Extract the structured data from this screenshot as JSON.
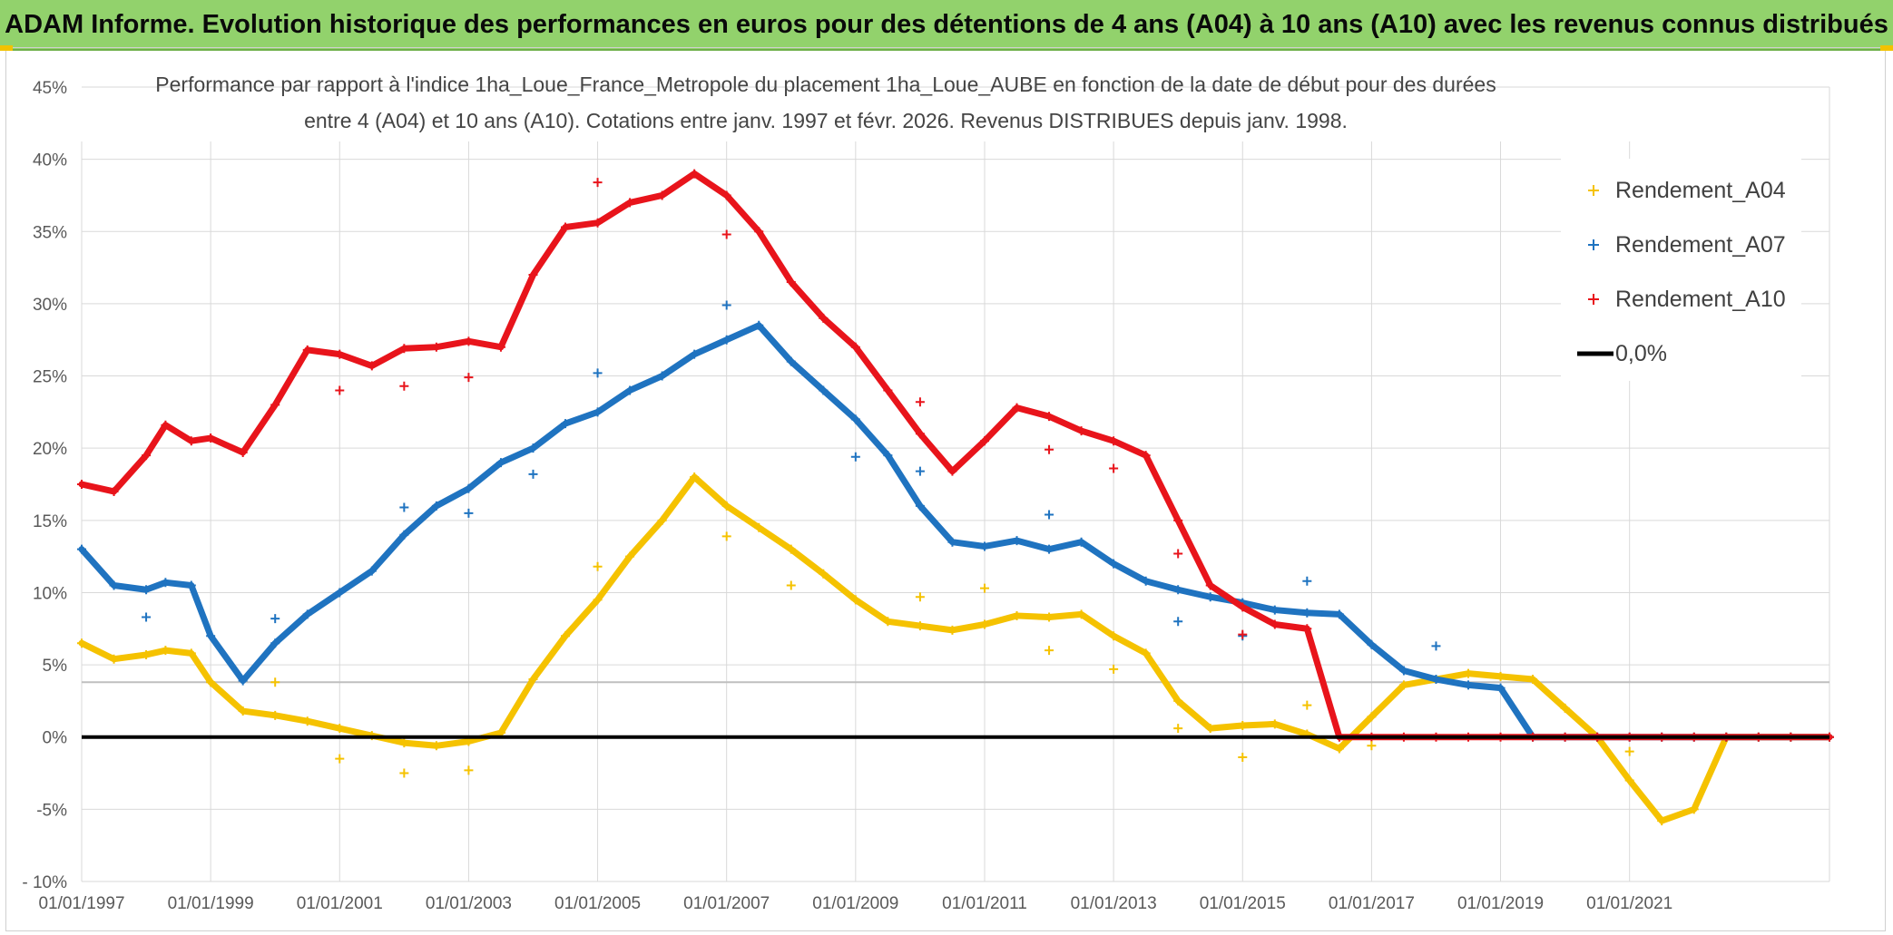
{
  "title": "ADAM Informe. Evolution historique des performances en euros pour des détentions de 4 ans (A04) à 10 ans (A10) avec les revenus connus distribués",
  "chart_data": {
    "type": "scatter",
    "subtitle_line1": "Performance par rapport à l'indice 1ha_Loue_France_Metropole  du placement 1ha_Loue_AUBE en fonction de la date de début pour des durées",
    "subtitle_line2": "entre 4 (A04) et 10 ans (A10). Cotations entre janv. 1997 et févr. 2026. Revenus DISTRIBUES depuis janv. 1998.",
    "xlabel": "",
    "ylabel": "",
    "xlim": [
      1997.0,
      2024.1
    ],
    "ylim": [
      -10,
      45
    ],
    "y_ticks": [
      "- 10%",
      "-5%",
      "0%",
      "5%",
      "10%",
      "15%",
      "20%",
      "25%",
      "30%",
      "35%",
      "40%",
      "45%"
    ],
    "y_tick_values": [
      -10,
      -5,
      0,
      5,
      10,
      15,
      20,
      25,
      30,
      35,
      40,
      45
    ],
    "x_ticks": [
      "01/01/1997",
      "01/01/1999",
      "01/01/2001",
      "01/01/2003",
      "01/01/2005",
      "01/01/2007",
      "01/01/2009",
      "01/01/2011",
      "01/01/2013",
      "01/01/2015",
      "01/01/2017",
      "01/01/2019",
      "01/01/2021"
    ],
    "x_tick_values": [
      1997,
      1999,
      2001,
      2003,
      2005,
      2007,
      2009,
      2011,
      2013,
      2015,
      2017,
      2019,
      2021
    ],
    "reference_line_value": 3.8,
    "legend_position": "top-right",
    "series": [
      {
        "name": "Rendement_A04",
        "color": "#f5c200",
        "x": [
          1997.0,
          1997.5,
          1998.0,
          1998.3,
          1998.7,
          1999.0,
          1999.5,
          2000.0,
          2000.5,
          2001.0,
          2001.5,
          2002.0,
          2002.5,
          2003.0,
          2003.5,
          2004.0,
          2004.5,
          2005.0,
          2005.5,
          2006.0,
          2006.5,
          2007.0,
          2007.5,
          2008.0,
          2008.5,
          2009.0,
          2009.5,
          2010.0,
          2010.5,
          2011.0,
          2011.5,
          2012.0,
          2012.5,
          2013.0,
          2013.5,
          2014.0,
          2014.5,
          2015.0,
          2015.5,
          2016.0,
          2016.5,
          2017.0,
          2017.5,
          2018.0,
          2018.5,
          2019.0,
          2019.5,
          2020.0,
          2020.5,
          2021.0,
          2021.5,
          2022.0,
          2022.5,
          2023.0,
          2023.5,
          2024.1
        ],
        "values": [
          6.5,
          5.4,
          5.7,
          6.0,
          5.8,
          3.8,
          1.8,
          1.5,
          1.1,
          0.6,
          0.1,
          -0.4,
          -0.6,
          -0.3,
          0.3,
          4.0,
          7.0,
          9.5,
          12.5,
          15.0,
          18.0,
          16.0,
          14.5,
          13.0,
          11.3,
          9.5,
          8.0,
          7.7,
          7.4,
          7.8,
          8.4,
          8.3,
          8.5,
          7.0,
          5.8,
          2.5,
          0.6,
          0.8,
          0.9,
          0.2,
          -0.8,
          1.4,
          3.6,
          4.0,
          4.4,
          4.2,
          4.0,
          2.0,
          0.0,
          -3.0,
          -5.8,
          -5.0,
          0.0,
          0.0,
          0.0,
          0.0
        ]
      },
      {
        "name": "Rendement_A07",
        "color": "#1f73c0",
        "x": [
          1997.0,
          1997.5,
          1998.0,
          1998.3,
          1998.7,
          1999.0,
          1999.5,
          2000.0,
          2000.5,
          2001.0,
          2001.5,
          2002.0,
          2002.5,
          2003.0,
          2003.5,
          2004.0,
          2004.5,
          2005.0,
          2005.5,
          2006.0,
          2006.5,
          2007.0,
          2007.5,
          2008.0,
          2008.5,
          2009.0,
          2009.5,
          2010.0,
          2010.5,
          2011.0,
          2011.5,
          2012.0,
          2012.5,
          2013.0,
          2013.5,
          2014.0,
          2014.5,
          2015.0,
          2015.5,
          2016.0,
          2016.5,
          2017.0,
          2017.5,
          2018.0,
          2018.5,
          2019.0,
          2019.5,
          2020.0,
          2020.5,
          2021.0,
          2021.5,
          2022.0,
          2022.5,
          2023.0,
          2023.5,
          2024.1
        ],
        "values": [
          13.0,
          10.5,
          10.2,
          10.7,
          10.5,
          7.0,
          3.9,
          6.5,
          8.5,
          10.0,
          11.5,
          14.0,
          16.0,
          17.2,
          19.0,
          20.0,
          21.7,
          22.5,
          24.0,
          25.0,
          26.5,
          27.5,
          28.5,
          26.0,
          24.0,
          22.0,
          19.5,
          16.0,
          13.5,
          13.2,
          13.6,
          13.0,
          13.5,
          12.0,
          10.8,
          10.2,
          9.7,
          9.3,
          8.8,
          8.6,
          8.5,
          6.4,
          4.6,
          4.0,
          3.6,
          3.4,
          0.0,
          0.0,
          0.0,
          0.0,
          0.0,
          0.0,
          0.0,
          0.0,
          0.0,
          0.0
        ]
      },
      {
        "name": "Rendement_A10",
        "color": "#e8141b",
        "x": [
          1997.0,
          1997.5,
          1998.0,
          1998.3,
          1998.7,
          1999.0,
          1999.5,
          2000.0,
          2000.5,
          2001.0,
          2001.5,
          2002.0,
          2002.5,
          2003.0,
          2003.5,
          2004.0,
          2004.5,
          2005.0,
          2005.5,
          2006.0,
          2006.5,
          2007.0,
          2007.5,
          2008.0,
          2008.5,
          2009.0,
          2009.5,
          2010.0,
          2010.5,
          2011.0,
          2011.5,
          2012.0,
          2012.5,
          2013.0,
          2013.5,
          2014.0,
          2014.5,
          2015.0,
          2015.5,
          2016.0,
          2016.5,
          2017.0,
          2017.5,
          2018.0,
          2018.5,
          2019.0,
          2019.5,
          2020.0,
          2020.5,
          2021.0,
          2021.5,
          2022.0,
          2022.5,
          2023.0,
          2023.5,
          2024.1
        ],
        "values": [
          17.5,
          17.0,
          19.5,
          21.6,
          20.5,
          20.7,
          19.7,
          23.0,
          26.8,
          26.5,
          25.7,
          26.9,
          27.0,
          27.4,
          27.0,
          32.0,
          35.3,
          35.6,
          37.0,
          37.5,
          39.0,
          37.5,
          35.0,
          31.5,
          29.0,
          27.0,
          24.0,
          21.0,
          18.4,
          20.5,
          22.8,
          22.2,
          21.2,
          20.5,
          19.5,
          15.0,
          10.5,
          9.0,
          7.8,
          7.5,
          0.0,
          0.0,
          0.0,
          0.0,
          0.0,
          0.0,
          0.0,
          0.0,
          0.0,
          0.0,
          0.0,
          0.0,
          0.0,
          0.0,
          0.0,
          0.0
        ]
      },
      {
        "name": "0,0%",
        "color": "#000000",
        "x": [
          1997.0,
          2024.1
        ],
        "values": [
          0,
          0
        ]
      }
    ],
    "outliers": [
      {
        "series": "Rendement_A04",
        "x": 2000.0,
        "y": 3.8
      },
      {
        "series": "Rendement_A04",
        "x": 2001.0,
        "y": -1.5
      },
      {
        "series": "Rendement_A04",
        "x": 2002.0,
        "y": -2.5
      },
      {
        "series": "Rendement_A04",
        "x": 2003.0,
        "y": -2.3
      },
      {
        "series": "Rendement_A04",
        "x": 2005.0,
        "y": 11.8
      },
      {
        "series": "Rendement_A04",
        "x": 2007.0,
        "y": 13.9
      },
      {
        "series": "Rendement_A04",
        "x": 2008.0,
        "y": 10.5
      },
      {
        "series": "Rendement_A04",
        "x": 2010.0,
        "y": 9.7
      },
      {
        "series": "Rendement_A04",
        "x": 2011.0,
        "y": 10.3
      },
      {
        "series": "Rendement_A04",
        "x": 2012.0,
        "y": 6.0
      },
      {
        "series": "Rendement_A04",
        "x": 2013.0,
        "y": 4.7
      },
      {
        "series": "Rendement_A04",
        "x": 2014.0,
        "y": 0.6
      },
      {
        "series": "Rendement_A04",
        "x": 2015.0,
        "y": -1.4
      },
      {
        "series": "Rendement_A04",
        "x": 2016.0,
        "y": 2.2
      },
      {
        "series": "Rendement_A04",
        "x": 2017.0,
        "y": -0.6
      },
      {
        "series": "Rendement_A04",
        "x": 2021.0,
        "y": -1.0
      },
      {
        "series": "Rendement_A07",
        "x": 1998.0,
        "y": 8.3
      },
      {
        "series": "Rendement_A07",
        "x": 2000.0,
        "y": 8.2
      },
      {
        "series": "Rendement_A07",
        "x": 2002.0,
        "y": 15.9
      },
      {
        "series": "Rendement_A07",
        "x": 2003.0,
        "y": 15.5
      },
      {
        "series": "Rendement_A07",
        "x": 2004.0,
        "y": 18.2
      },
      {
        "series": "Rendement_A07",
        "x": 2005.0,
        "y": 25.2
      },
      {
        "series": "Rendement_A07",
        "x": 2007.0,
        "y": 29.9
      },
      {
        "series": "Rendement_A07",
        "x": 2009.0,
        "y": 19.4
      },
      {
        "series": "Rendement_A07",
        "x": 2010.0,
        "y": 18.4
      },
      {
        "series": "Rendement_A07",
        "x": 2012.0,
        "y": 15.4
      },
      {
        "series": "Rendement_A07",
        "x": 2014.0,
        "y": 8.0
      },
      {
        "series": "Rendement_A07",
        "x": 2015.0,
        "y": 7.0
      },
      {
        "series": "Rendement_A07",
        "x": 2016.0,
        "y": 10.8
      },
      {
        "series": "Rendement_A07",
        "x": 2018.0,
        "y": 6.3
      },
      {
        "series": "Rendement_A10",
        "x": 2001.0,
        "y": 24.0
      },
      {
        "series": "Rendement_A10",
        "x": 2002.0,
        "y": 24.3
      },
      {
        "series": "Rendement_A10",
        "x": 2003.0,
        "y": 24.9
      },
      {
        "series": "Rendement_A10",
        "x": 2005.0,
        "y": 38.4
      },
      {
        "series": "Rendement_A10",
        "x": 2007.0,
        "y": 34.8
      },
      {
        "series": "Rendement_A10",
        "x": 2010.0,
        "y": 23.2
      },
      {
        "series": "Rendement_A10",
        "x": 2012.0,
        "y": 19.9
      },
      {
        "series": "Rendement_A10",
        "x": 2013.0,
        "y": 18.6
      },
      {
        "series": "Rendement_A10",
        "x": 2014.0,
        "y": 12.7
      },
      {
        "series": "Rendement_A10",
        "x": 2015.0,
        "y": 7.1
      }
    ]
  },
  "legend": {
    "items": [
      {
        "label": "Rendement_A04",
        "color": "#f5c200",
        "marker": "plus"
      },
      {
        "label": "Rendement_A07",
        "color": "#1f73c0",
        "marker": "plus"
      },
      {
        "label": "Rendement_A10",
        "color": "#e8141b",
        "marker": "plus"
      },
      {
        "label": "0,0%",
        "color": "#000000",
        "marker": "line"
      }
    ]
  }
}
